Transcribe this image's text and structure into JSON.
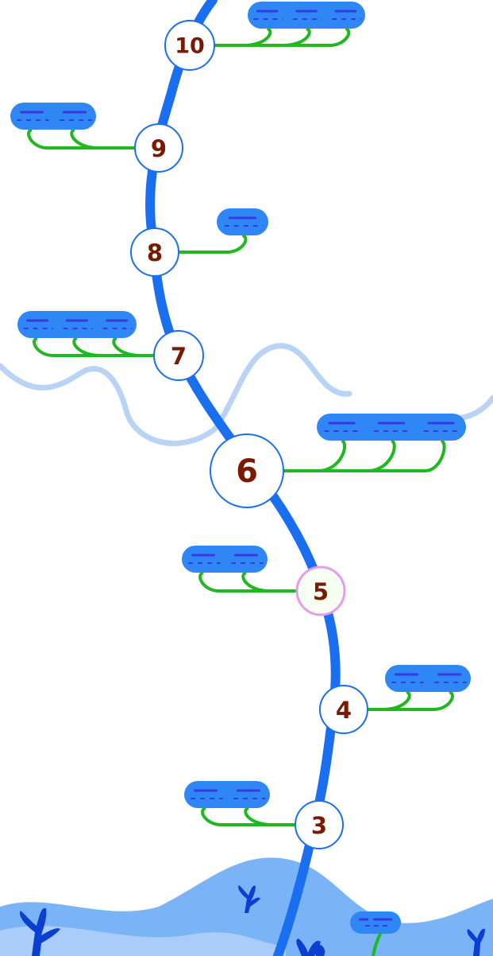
{
  "colors": {
    "vine": "#1a6ff0",
    "branch": "#1fb81f",
    "leaf": "#2f86f5",
    "leaf_dash": "#3a3adf",
    "cloud_line": "#b9d3f5",
    "hill_back": "#7ab4f7",
    "hill_front": "#a9cdf8",
    "plant": "#0b3fd0",
    "node_fill": "#ffffff",
    "node_stroke": "#1a6ff0",
    "current_node_stroke": "#e59cf0",
    "number_color": "#7a1a00"
  },
  "levels": [
    {
      "number": "3",
      "leaves": 2,
      "side": "left",
      "state": "normal"
    },
    {
      "number": "4",
      "leaves": 2,
      "side": "right",
      "state": "normal"
    },
    {
      "number": "5",
      "leaves": 2,
      "side": "left",
      "state": "current"
    },
    {
      "number": "6",
      "leaves": 3,
      "side": "right",
      "state": "milestone"
    },
    {
      "number": "7",
      "leaves": 3,
      "side": "left",
      "state": "normal"
    },
    {
      "number": "8",
      "leaves": 1,
      "side": "right",
      "state": "normal"
    },
    {
      "number": "9",
      "leaves": 2,
      "side": "left",
      "state": "normal"
    },
    {
      "number": "10",
      "leaves": 3,
      "side": "right",
      "state": "normal"
    }
  ]
}
